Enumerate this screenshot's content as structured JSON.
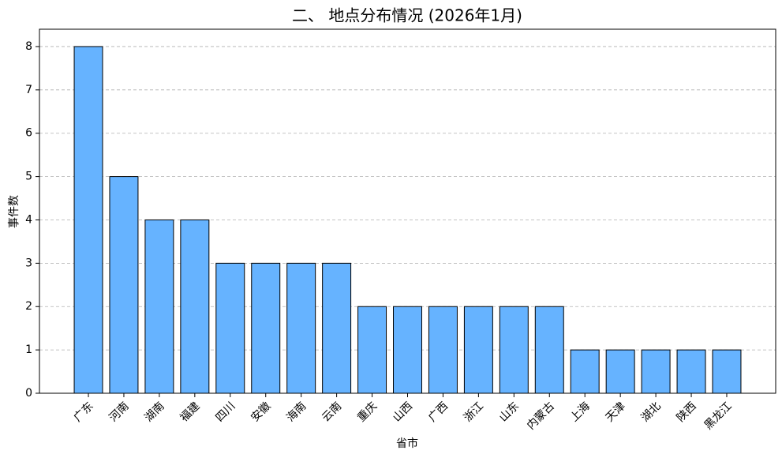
{
  "chart_data": {
    "type": "bar",
    "title": "二、 地点分布情况 (2026年1月)",
    "x_label": "省市",
    "y_label": "事件数",
    "categories": [
      "广东",
      "河南",
      "湖南",
      "福建",
      "四川",
      "安徽",
      "海南",
      "云南",
      "重庆",
      "山西",
      "广西",
      "浙江",
      "山东",
      "内蒙古",
      "上海",
      "天津",
      "湖北",
      "陕西",
      "黑龙江"
    ],
    "values": [
      8,
      5,
      4,
      4,
      3,
      3,
      3,
      3,
      2,
      2,
      2,
      2,
      2,
      2,
      1,
      1,
      1,
      1,
      1
    ],
    "color": "#66b3ff",
    "edge_color": "#000000",
    "ylim": [
      0,
      8.4
    ],
    "yticks": [
      0,
      1,
      2,
      3,
      4,
      5,
      6,
      7,
      8
    ],
    "grid": true
  }
}
